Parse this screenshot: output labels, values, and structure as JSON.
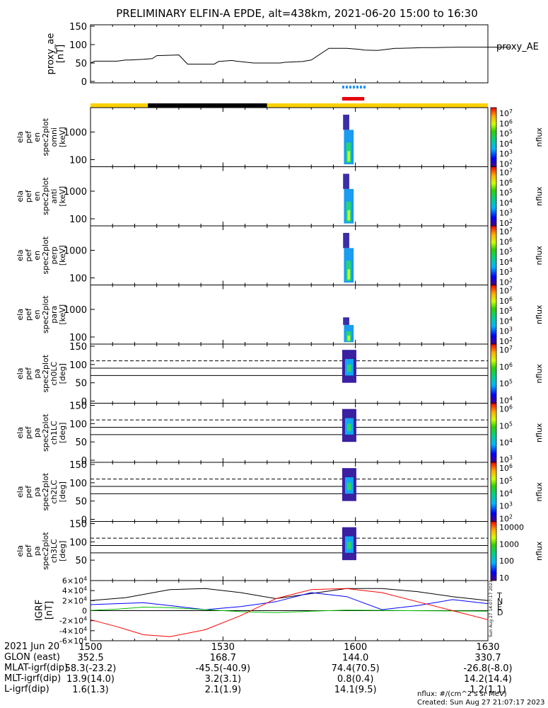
{
  "title": "PRELIMINARY ELFIN-A EPDE, alt=438km, 2021-06-20 15:00 to 16:30",
  "chart_data": {
    "type": "line",
    "time_range": [
      "2021-06-20 15:00",
      "2021-06-20 16:30"
    ],
    "ae_panel": {
      "ylabel_lines": [
        "proxy_ae",
        "[nT]"
      ],
      "ylim": [
        0,
        150
      ],
      "yticks": [
        "0",
        "50",
        "100",
        "150"
      ],
      "legend": "proxy_AE",
      "series": {
        "name": "proxy_AE",
        "x": [
          0,
          2,
          6,
          12,
          16,
          18,
          24,
          28,
          30,
          40,
          44,
          52,
          56,
          58,
          64,
          66,
          74,
          86,
          88,
          96,
          100,
          108,
          116,
          122,
          124,
          130,
          138,
          140,
          146,
          150,
          156,
          166,
          170,
          180,
          186,
          190
        ],
        "y": [
          50,
          55,
          55,
          55,
          58,
          58,
          60,
          62,
          70,
          72,
          47,
          47,
          47,
          54,
          57,
          55,
          50,
          50,
          52,
          54,
          58,
          90,
          90,
          87,
          85,
          84,
          90,
          90,
          91,
          92,
          92,
          93,
          93,
          93,
          93,
          93
        ]
      }
    },
    "fast_mode_marker": {
      "start_min": 57.0,
      "end_min": 62.0,
      "color": "#1e90ff"
    },
    "science_zone_marker": {
      "start_min": 57.0,
      "end_min": 62.0,
      "color": "#e8000b"
    },
    "day_night_bar": [
      {
        "start_min": 0,
        "end_min": 13,
        "color": "#ffd200"
      },
      {
        "start_min": 13,
        "end_min": 40,
        "color": "#000000"
      },
      {
        "start_min": 40,
        "end_min": 90,
        "color": "#ffd200"
      }
    ],
    "energy_panels": [
      {
        "ylabel_lines": [
          "ela",
          "pef",
          "en",
          "spec2plot",
          "omni",
          "[keV]"
        ],
        "yticks": [
          "100",
          "1000"
        ],
        "cbar_ticks": [
          "10^7",
          "10^6",
          "10^5",
          "10^4",
          "10^3",
          "10^2"
        ],
        "cbar_label": "nflux"
      },
      {
        "ylabel_lines": [
          "ela",
          "pef",
          "en",
          "spec2plot",
          "anti",
          "[keV]"
        ],
        "yticks": [
          "100",
          "1000"
        ],
        "cbar_ticks": [
          "10^7",
          "10^6",
          "10^5",
          "10^4",
          "10^3",
          "10^2"
        ],
        "cbar_label": "nflux"
      },
      {
        "ylabel_lines": [
          "ela",
          "pef",
          "en",
          "spec2plot",
          "perp",
          "[keV]"
        ],
        "yticks": [
          "100",
          "1000"
        ],
        "cbar_ticks": [
          "10^7",
          "10^6",
          "10^5",
          "10^4",
          "10^3",
          "10^2"
        ],
        "cbar_label": "nflux"
      },
      {
        "ylabel_lines": [
          "ela",
          "pef",
          "en",
          "spec2plot",
          "para",
          "[keV]"
        ],
        "yticks": [
          "100",
          "1000"
        ],
        "cbar_ticks": [
          "10^7",
          "10^6",
          "10^5",
          "10^4",
          "10^3",
          "10^2"
        ],
        "cbar_label": "nflux"
      }
    ],
    "pitch_angle_panels": [
      {
        "ylabel_lines": [
          "ela",
          "pef",
          "pa",
          "spec2plot",
          "ch0LC",
          "[deg]"
        ],
        "ylim": [
          0,
          150
        ],
        "yticks": [
          "0",
          "50",
          "100",
          "150"
        ],
        "loss_cone_deg": 70,
        "anti_loss_cone_deg": 110,
        "perp_deg": 90,
        "cbar_ticks": [
          "10^7",
          "10^6",
          "10^5",
          "10^4"
        ],
        "cbar_label": "nflux"
      },
      {
        "ylabel_lines": [
          "ela",
          "pef",
          "pa",
          "spec2plot",
          "ch1LC",
          "[deg]"
        ],
        "ylim": [
          0,
          150
        ],
        "yticks": [
          "0",
          "50",
          "100",
          "150"
        ],
        "loss_cone_deg": 70,
        "anti_loss_cone_deg": 110,
        "perp_deg": 90,
        "cbar_ticks": [
          "10^6",
          "10^5",
          "10^4",
          "10^3"
        ],
        "cbar_label": "nflux"
      },
      {
        "ylabel_lines": [
          "ela",
          "pef",
          "pa",
          "spec2plot",
          "ch2LC",
          "[deg]"
        ],
        "ylim": [
          0,
          150
        ],
        "yticks": [
          "0",
          "50",
          "100",
          "150"
        ],
        "loss_cone_deg": 70,
        "anti_loss_cone_deg": 110,
        "perp_deg": 90,
        "cbar_ticks": [
          "10^6",
          "10^5",
          "10^4",
          "10^3",
          "10^2"
        ],
        "cbar_label": "nflux"
      },
      {
        "ylabel_lines": [
          "ela",
          "pef",
          "pa",
          "spec2plot",
          "ch3LC",
          "[deg]"
        ],
        "ylim": [
          0,
          150
        ],
        "yticks": [
          "50",
          "100",
          "150"
        ],
        "loss_cone_deg": 70,
        "anti_loss_cone_deg": 110,
        "perp_deg": 90,
        "cbar_ticks": [
          "10000",
          "1000",
          "100",
          "10"
        ],
        "cbar_label": "nflux"
      }
    ],
    "field_panel": {
      "ylabel_lines": [
        "IGRF",
        "[nT]"
      ],
      "ylim": [
        -60000,
        60000
      ],
      "yticks": [
        "-6×10^4",
        "-4×10^4",
        "-2×10^4",
        "0",
        "2×10^4",
        "4×10^4",
        "6×10^4"
      ],
      "series": [
        {
          "name": "T",
          "color": "#000000",
          "x": [
            0,
            8,
            18,
            26,
            34,
            42,
            50,
            58,
            66,
            74,
            82,
            90
          ],
          "y": [
            20000,
            26000,
            42000,
            44000,
            36000,
            24000,
            34000,
            44000,
            44000,
            38000,
            28000,
            20000
          ]
        },
        {
          "name": "N",
          "color": "#0000ff",
          "x": [
            0,
            6,
            12,
            18,
            26,
            34,
            42,
            50,
            58,
            66,
            74,
            82,
            90
          ],
          "y": [
            12000,
            14000,
            16000,
            10000,
            2000,
            8000,
            18000,
            36000,
            28000,
            2000,
            10000,
            22000,
            14000
          ]
        },
        {
          "name": "E",
          "color": "#00c000",
          "x": [
            0,
            6,
            12,
            18,
            26,
            34,
            42,
            50,
            58,
            66,
            74,
            82,
            90
          ],
          "y": [
            500,
            3000,
            7000,
            6000,
            2000,
            -2000,
            -4000,
            -1000,
            1000,
            500,
            -200,
            -500,
            -1000
          ]
        },
        {
          "name": "D",
          "color": "#ff0000",
          "x": [
            0,
            6,
            12,
            18,
            26,
            34,
            42,
            50,
            58,
            66,
            74,
            82,
            90
          ],
          "y": [
            -18000,
            -32000,
            -48000,
            -52000,
            -38000,
            -10000,
            24000,
            42000,
            44000,
            36000,
            18000,
            0,
            -18000
          ]
        }
      ],
      "created_stamp": "Sun Aug 27 14:07:17 2023"
    },
    "spectrogram_patches": [
      {
        "t0": 57.2,
        "t1": 58.6,
        "e0": 0.7,
        "e1": 1.0,
        "fill": "#3a2fa8"
      },
      {
        "t0": 57.4,
        "t1": 59.6,
        "e0": 0.02,
        "e1": 0.7,
        "fill": "#1a9cf0"
      },
      {
        "t0": 57.9,
        "t1": 59.0,
        "e0": 0.05,
        "e1": 0.45,
        "fill": "#28d27a"
      },
      {
        "t0": 58.2,
        "t1": 58.8,
        "e0": 0.08,
        "e1": 0.28,
        "fill": "#b7ff3a"
      }
    ]
  },
  "footer": {
    "rows": [
      {
        "label": "2021 Jun 20",
        "values": [
          "1500",
          "1530",
          "1600",
          "1630"
        ]
      },
      {
        "label": "GLON (east)",
        "values": [
          "352.5",
          "168.7",
          "144.0",
          "330.7"
        ]
      },
      {
        "label": "MLAT-igrf(dip)",
        "values": [
          "58.3(-23.2)",
          "-45.5(-40.9)",
          "74.4(70.5)",
          "-26.8(-8.0)"
        ]
      },
      {
        "label": "MLT-igrf(dip)",
        "values": [
          "13.9(14.0)",
          "3.2(3.1)",
          "0.8(0.4)",
          "14.2(14.4)"
        ]
      },
      {
        "label": "L-igrf(dip)",
        "values": [
          "1.6(1.3)",
          "2.1(1.9)",
          "14.1(9.5)",
          "1.2(1.1)"
        ]
      }
    ],
    "nflux_units": "nflux: #/(cm^2 s sr MeV)",
    "created": "Created: Sun Aug 27 21:07:17 2023"
  }
}
